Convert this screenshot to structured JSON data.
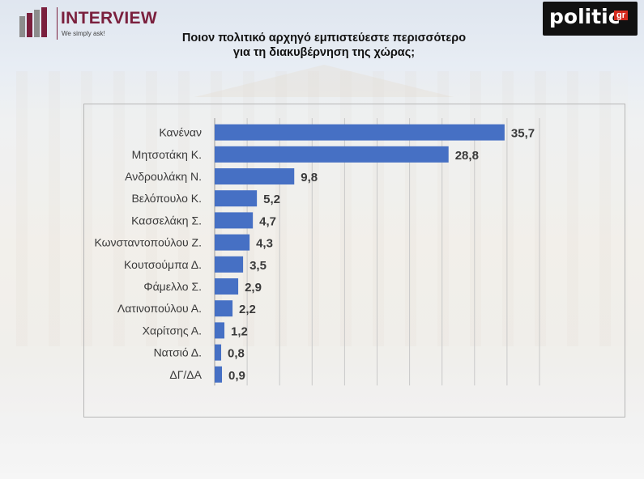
{
  "header": {
    "brand_left": "INTERVIEW",
    "brand_left_tagline": "We simply ask!",
    "brand_right": "politic",
    "brand_right_suffix": "gr"
  },
  "title_line1": "Ποιον πολιτικό αρχηγό εμπιστεύεστε περισσότερο",
  "title_line2": "για τη διακυβέρνηση της χώρας;",
  "colors": {
    "bar": "#4670c4",
    "grid": "#c9c9c9",
    "label": "#3a3a3a",
    "brand": "#7a1f3d",
    "gr_badge": "#d42a1e"
  },
  "chart_data": {
    "type": "bar",
    "orientation": "horizontal",
    "categories": [
      "Κανέναν",
      "Μητσοτάκη Κ.",
      "Ανδρουλάκη Ν.",
      "Βελόπουλο Κ.",
      "Κασσελάκη Σ.",
      "Κωνσταντοπούλου Ζ.",
      "Κουτσούμπα Δ.",
      "Φάμελλο Σ.",
      "Λατινοπούλου Α.",
      "Χαρίτσης Α.",
      "Νατσιό Δ.",
      "ΔΓ/ΔΑ"
    ],
    "values": [
      35.7,
      28.8,
      9.8,
      5.2,
      4.7,
      4.3,
      3.5,
      2.9,
      2.2,
      1.2,
      0.8,
      0.9
    ],
    "value_labels": [
      "35,7",
      "28,8",
      "9,8",
      "5,2",
      "4,7",
      "4,3",
      "3,5",
      "2,9",
      "2,2",
      "1,2",
      "0,8",
      "0,9"
    ],
    "xlim": [
      0,
      40
    ],
    "grid": true,
    "title": "Ποιον πολιτικό αρχηγό εμπιστεύεστε περισσότερο για τη διακυβέρνηση της χώρας;"
  }
}
